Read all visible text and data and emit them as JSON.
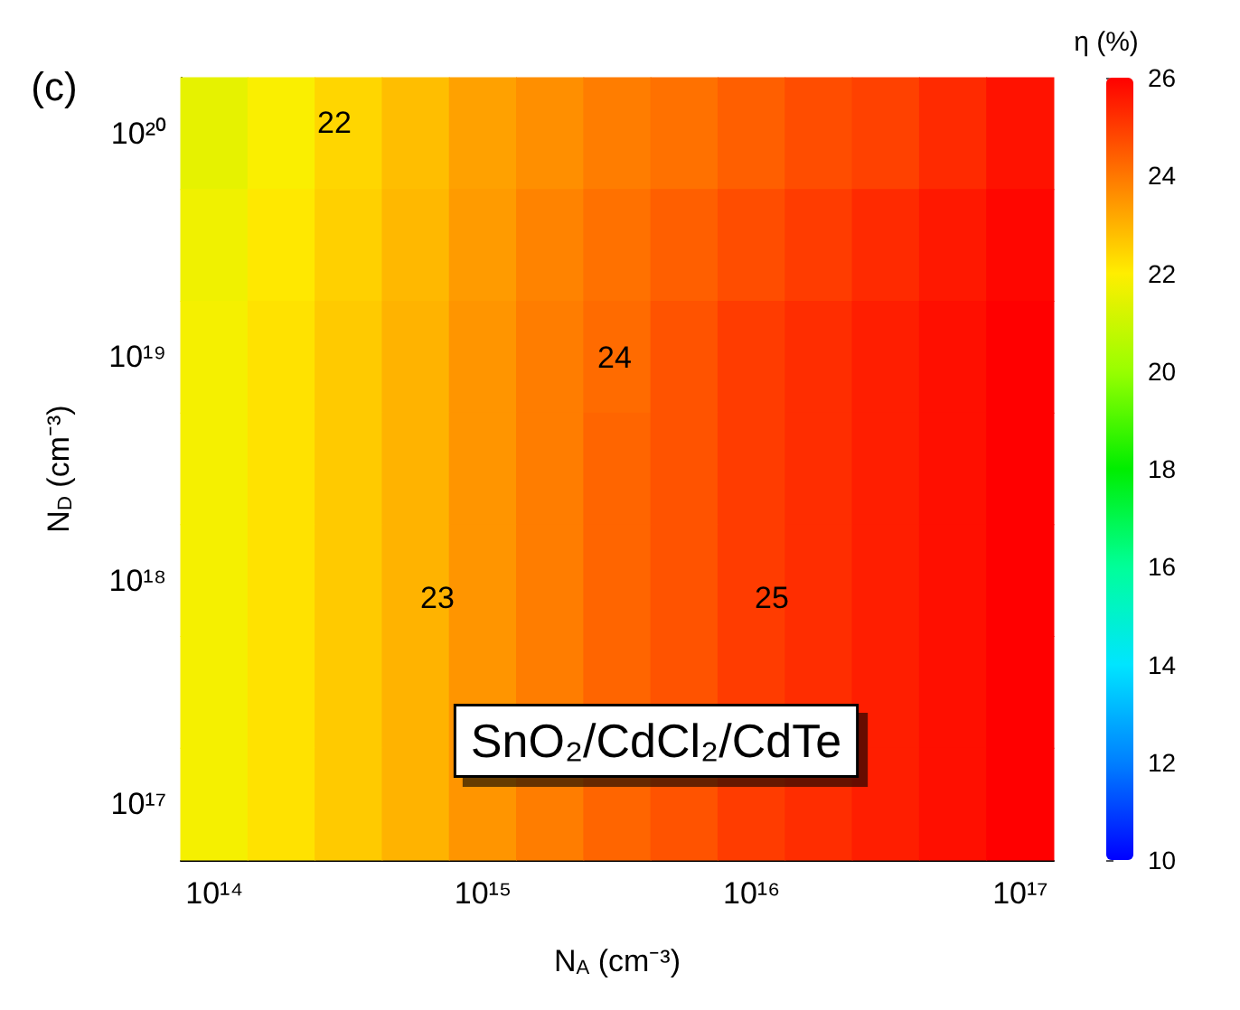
{
  "chart_data": {
    "type": "heatmap",
    "xlabel": "N$_{A}$ (cm⁻³)",
    "ylabel": "N$_{D}$ (cm⁻³)",
    "clabel": "η (%)",
    "categories": [
      "10¹⁴",
      null,
      null,
      null,
      "10¹⁵",
      null,
      null,
      null,
      "10¹⁶",
      null,
      null,
      null,
      "10¹⁷"
    ],
    "y_categories": [
      "10²⁰",
      null,
      "10¹⁹",
      null,
      "10¹⁸",
      null,
      "10¹⁷"
    ],
    "cells": [
      [
        21.5,
        21.9,
        22.4,
        22.8,
        23.3,
        23.6,
        23.9,
        24.1,
        24.4,
        24.7,
        24.9,
        25.3,
        25.7
      ],
      [
        21.7,
        22.1,
        22.5,
        22.9,
        23.4,
        23.8,
        24.1,
        24.4,
        24.7,
        25.0,
        25.3,
        25.6,
        25.9
      ],
      [
        21.8,
        22.2,
        22.6,
        23.0,
        23.5,
        23.9,
        24.2,
        24.6,
        25.0,
        25.25,
        25.5,
        25.75,
        26.0
      ],
      [
        21.8,
        22.2,
        22.6,
        23.0,
        23.5,
        23.9,
        24.3,
        24.6,
        25.0,
        25.25,
        25.5,
        25.75,
        26.0
      ],
      [
        21.8,
        22.2,
        22.6,
        23.0,
        23.5,
        23.9,
        24.3,
        24.6,
        25.0,
        25.25,
        25.5,
        25.75,
        26.0
      ],
      [
        21.8,
        22.2,
        22.6,
        23.0,
        23.5,
        23.9,
        24.3,
        24.6,
        25.0,
        25.25,
        25.5,
        25.75,
        26.0
      ],
      [
        21.8,
        22.2,
        22.6,
        23.0,
        23.5,
        23.9,
        24.3,
        24.6,
        25.0,
        25.25,
        25.5,
        25.75,
        26.0
      ]
    ],
    "clim": [
      10,
      26
    ],
    "cticks": [
      10,
      12,
      14,
      16,
      18,
      20,
      22,
      24,
      26
    ],
    "annotations": [
      "(c)",
      "22",
      "23",
      "24",
      "25",
      "SnO₂/CdCl₂/CdTe"
    ]
  }
}
